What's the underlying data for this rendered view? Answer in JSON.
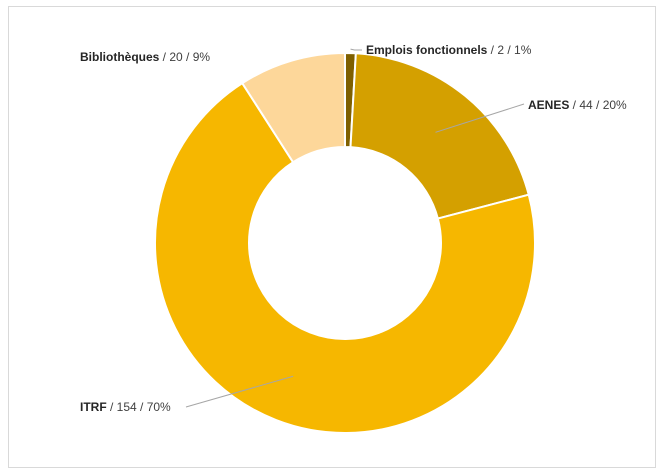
{
  "chart_data": {
    "type": "donut",
    "title": "",
    "categories": [
      "Emplois fonctionnels",
      "AENES",
      "ITRF",
      "Bibliothèques"
    ],
    "values": [
      2,
      44,
      154,
      20
    ],
    "percents": [
      "1%",
      "20%",
      "70%",
      "9%"
    ],
    "colors": [
      "#7f6000",
      "#d4a000",
      "#f6b700",
      "#fdd79a"
    ],
    "labels": [
      {
        "category": "Emplois fonctionnels",
        "rest": " / 2 / 1%"
      },
      {
        "category": "AENES",
        "rest": " / 44 / 20%"
      },
      {
        "category": "ITRF",
        "rest": " / 154 / 70%"
      },
      {
        "category": "Bibliothèques",
        "rest": " / 20 / 9%"
      }
    ],
    "legend": "none"
  }
}
